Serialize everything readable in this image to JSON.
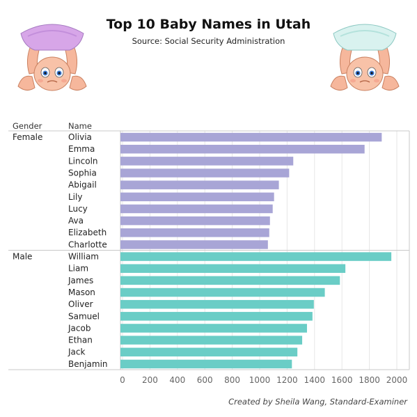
{
  "header": {
    "title": "Top 10 Baby Names in Utah",
    "subtitle": "Source: Social Security Administration"
  },
  "columns": {
    "gender": "Gender",
    "name": "Name"
  },
  "credit": "Created by Sheila Wang, Standard-Examiner",
  "decorations": {
    "left_baby": "baby-purple-diaper-icon",
    "right_baby": "baby-teal-diaper-icon"
  },
  "colors": {
    "female": "#a8a5d6",
    "male": "#6acdc6"
  },
  "chart_data": {
    "type": "bar",
    "orientation": "horizontal",
    "xlim": [
      0,
      2000
    ],
    "xticks": [
      0,
      200,
      400,
      600,
      800,
      1000,
      1200,
      1400,
      1600,
      1800,
      2000
    ],
    "grid": true,
    "groups": [
      {
        "name": "Female",
        "categories": [
          "Olivia",
          "Emma",
          "Lincoln",
          "Sophia",
          "Abigail",
          "Lily",
          "Lucy",
          "Ava",
          "Elizabeth",
          "Charlotte"
        ],
        "values": [
          1890,
          1765,
          1245,
          1215,
          1140,
          1105,
          1095,
          1075,
          1070,
          1060
        ]
      },
      {
        "name": "Male",
        "categories": [
          "William",
          "Liam",
          "James",
          "Mason",
          "Oliver",
          "Samuel",
          "Jacob",
          "Ethan",
          "Jack",
          "Benjamin"
        ],
        "values": [
          1960,
          1625,
          1585,
          1475,
          1395,
          1385,
          1345,
          1310,
          1275,
          1235
        ]
      }
    ]
  }
}
